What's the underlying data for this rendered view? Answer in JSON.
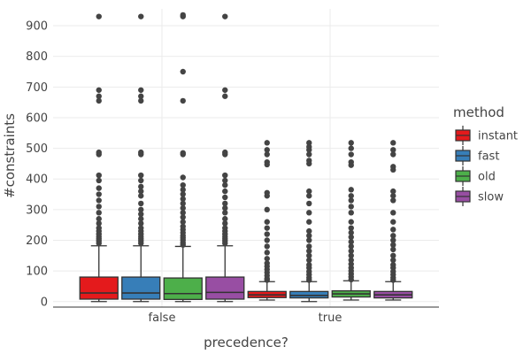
{
  "chart_data": {
    "type": "box",
    "xlabel": "precedence?",
    "ylabel": "#constraints",
    "ylim": [
      -18,
      955
    ],
    "y_ticks": [
      0,
      100,
      200,
      300,
      400,
      500,
      600,
      700,
      800,
      900
    ],
    "grid": true,
    "legend": {
      "title": "method",
      "position": "right"
    },
    "categories": [
      "false",
      "true"
    ],
    "series": [
      {
        "name": "instant",
        "color": "#e41a1c",
        "boxes": [
          {
            "category": "false",
            "min": 0,
            "q1": 8,
            "median": 28,
            "q3": 80,
            "max": 182,
            "outliers": [
              190,
              198,
              205,
              212,
              220,
              230,
              240,
              255,
              270,
              290,
              310,
              330,
              350,
              370,
              395,
              412,
              480,
              487,
              655,
              670,
              690,
              930
            ]
          },
          {
            "category": "true",
            "min": 5,
            "q1": 13,
            "median": 22,
            "q3": 33,
            "max": 65,
            "outliers": [
              70,
              75,
              85,
              95,
              105,
              115,
              125,
              140,
              160,
              180,
              200,
              220,
              240,
              260,
              300,
              345,
              355,
              447,
              455,
              480,
              495,
              518
            ]
          }
        ]
      },
      {
        "name": "fast",
        "color": "#377eb8",
        "boxes": [
          {
            "category": "false",
            "min": 0,
            "q1": 8,
            "median": 28,
            "q3": 80,
            "max": 182,
            "outliers": [
              190,
              198,
              205,
              212,
              220,
              230,
              240,
              255,
              270,
              285,
              300,
              320,
              345,
              360,
              375,
              395,
              412,
              480,
              487,
              655,
              670,
              690,
              930
            ]
          },
          {
            "category": "true",
            "min": 0,
            "q1": 12,
            "median": 20,
            "q3": 33,
            "max": 65,
            "outliers": [
              70,
              78,
              88,
              98,
              110,
              120,
              135,
              150,
              165,
              180,
              200,
              215,
              230,
              260,
              290,
              320,
              345,
              360,
              450,
              460,
              480,
              495,
              505,
              518
            ]
          }
        ]
      },
      {
        "name": "old",
        "color": "#4daf4a",
        "boxes": [
          {
            "category": "false",
            "min": 0,
            "q1": 7,
            "median": 26,
            "q3": 77,
            "max": 180,
            "outliers": [
              185,
              192,
              200,
              208,
              215,
              225,
              235,
              245,
              260,
              275,
              290,
              305,
              320,
              335,
              350,
              365,
              380,
              405,
              480,
              485,
              655,
              750,
              930,
              935
            ]
          },
          {
            "category": "true",
            "min": 5,
            "q1": 15,
            "median": 25,
            "q3": 35,
            "max": 68,
            "outliers": [
              72,
              80,
              90,
              100,
              110,
              122,
              135,
              150,
              165,
              180,
              195,
              210,
              225,
              240,
              260,
              290,
              310,
              330,
              345,
              365,
              445,
              455,
              480,
              500,
              518
            ]
          }
        ]
      },
      {
        "name": "slow",
        "color": "#984ea3",
        "boxes": [
          {
            "category": "false",
            "min": 0,
            "q1": 8,
            "median": 30,
            "q3": 80,
            "max": 182,
            "outliers": [
              190,
              198,
              205,
              212,
              220,
              230,
              240,
              255,
              270,
              290,
              305,
              320,
              340,
              360,
              380,
              395,
              412,
              480,
              487,
              670,
              690,
              930
            ]
          },
          {
            "category": "true",
            "min": 5,
            "q1": 12,
            "median": 22,
            "q3": 33,
            "max": 65,
            "outliers": [
              70,
              78,
              88,
              98,
              110,
              120,
              135,
              150,
              170,
              185,
              200,
              215,
              235,
              260,
              290,
              330,
              345,
              360,
              430,
              440,
              480,
              495,
              518
            ]
          }
        ]
      }
    ]
  }
}
